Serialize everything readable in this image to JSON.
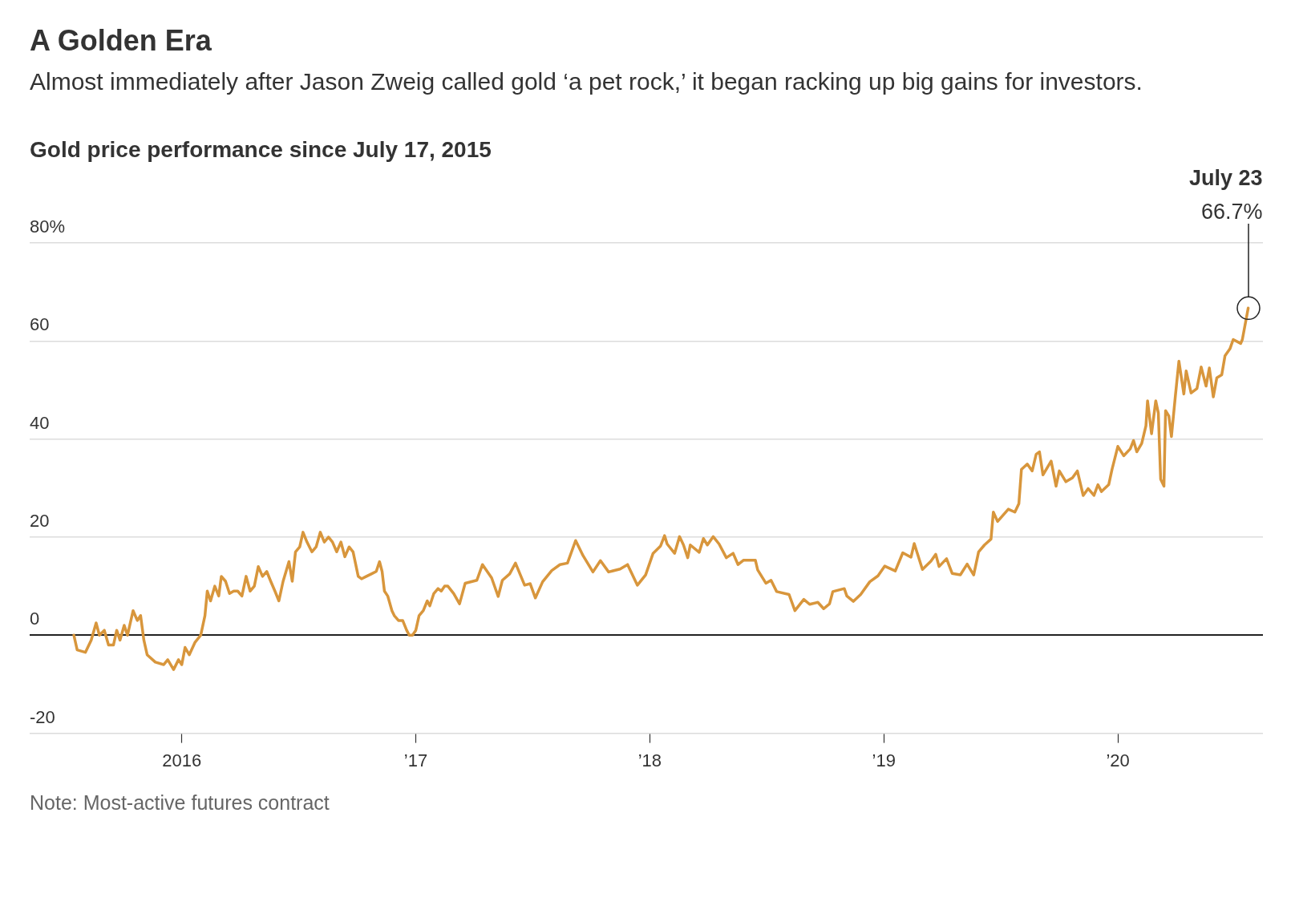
{
  "chart_data": {
    "type": "line",
    "title": "A Golden Era",
    "subtitle": "Almost immediately after Jason Zweig called gold ‘a pet rock,’ it began racking up big gains for investors.",
    "ylabel": "Gold price performance since July 17, 2015",
    "x": [
      2015.539,
      2015.553,
      2015.588,
      2015.613,
      2015.634,
      2015.648,
      2015.669,
      2015.687,
      2015.708,
      2015.722,
      2015.736,
      2015.754,
      2015.768,
      2015.792,
      2015.81,
      2015.824,
      2015.838,
      2015.852,
      2015.887,
      2015.923,
      2015.94,
      2015.965,
      2015.986,
      2016.0,
      2016.014,
      2016.032,
      2016.056,
      2016.081,
      2016.099,
      2016.109,
      2016.123,
      2016.141,
      2016.158,
      2016.169,
      2016.187,
      2016.204,
      2016.222,
      2016.239,
      2016.257,
      2016.275,
      2016.292,
      2016.31,
      2016.327,
      2016.345,
      2016.363,
      2016.38,
      2016.398,
      2016.415,
      2016.433,
      2016.458,
      2016.472,
      2016.486,
      2016.504,
      2016.518,
      2016.535,
      2016.556,
      2016.574,
      2016.592,
      2016.609,
      2016.627,
      2016.644,
      2016.662,
      2016.68,
      2016.697,
      2016.715,
      2016.732,
      2016.754,
      2016.768,
      2016.789,
      2016.81,
      2016.831,
      2016.845,
      2016.856,
      2016.866,
      2016.88,
      2016.898,
      2016.908,
      2016.926,
      2016.944,
      2016.961,
      2016.972,
      2016.986,
      2017.0,
      2017.014,
      2017.032,
      2017.049,
      2017.06,
      2017.077,
      2017.095,
      2017.109,
      2017.123,
      2017.137,
      2017.162,
      2017.187,
      2017.211,
      2017.261,
      2017.285,
      2017.324,
      2017.352,
      2017.37,
      2017.401,
      2017.426,
      2017.465,
      2017.489,
      2017.511,
      2017.542,
      2017.581,
      2017.616,
      2017.648,
      2017.683,
      2017.715,
      2017.757,
      2017.789,
      2017.824,
      2017.873,
      2017.905,
      2017.947,
      2017.982,
      2018.014,
      2018.046,
      2018.063,
      2018.074,
      2018.106,
      2018.127,
      2018.144,
      2018.162,
      2018.173,
      2018.211,
      2018.229,
      2018.246,
      2018.271,
      2018.296,
      2018.327,
      2018.356,
      2018.377,
      2018.401,
      2018.451,
      2018.461,
      2018.496,
      2018.518,
      2018.542,
      2018.595,
      2018.62,
      2018.658,
      2018.683,
      2018.718,
      2018.743,
      2018.768,
      2018.782,
      2018.831,
      2018.842,
      2018.87,
      2018.901,
      2018.94,
      2018.975,
      2019.004,
      2019.049,
      2019.081,
      2019.116,
      2019.13,
      2019.165,
      2019.201,
      2019.222,
      2019.236,
      2019.268,
      2019.292,
      2019.327,
      2019.356,
      2019.384,
      2019.405,
      2019.43,
      2019.458,
      2019.468,
      2019.486,
      2019.532,
      2019.56,
      2019.577,
      2019.588,
      2019.613,
      2019.634,
      2019.651,
      2019.665,
      2019.68,
      2019.715,
      2019.736,
      2019.75,
      2019.778,
      2019.806,
      2019.827,
      2019.852,
      2019.873,
      2019.898,
      2019.915,
      2019.93,
      2019.961,
      2019.975,
      2020.0,
      2020.025,
      2020.053,
      2020.067,
      2020.081,
      2020.102,
      2020.12,
      2020.127,
      2020.144,
      2020.162,
      2020.173,
      2020.183,
      2020.197,
      2020.204,
      2020.218,
      2020.229,
      2020.246,
      2020.261,
      2020.282,
      2020.292,
      2020.313,
      2020.338,
      2020.356,
      2020.377,
      2020.391,
      2020.408,
      2020.423,
      2020.444,
      2020.458,
      2020.479,
      2020.493,
      2020.525,
      2020.532,
      2020.557
    ],
    "series": [
      {
        "color": "#d8963c",
        "value_labels": [
          null,
          null,
          null,
          null,
          null,
          null,
          null,
          null,
          null,
          null,
          null,
          null,
          null,
          null,
          null,
          null,
          null,
          null,
          null,
          null,
          null,
          null,
          null,
          null,
          null,
          null,
          null,
          null,
          null,
          null,
          null,
          null,
          null,
          null,
          null,
          null,
          null,
          null,
          null,
          null,
          null,
          null,
          null,
          null,
          null,
          null,
          null,
          null,
          null,
          null,
          null,
          null,
          null,
          null,
          null,
          null,
          null,
          null,
          null,
          null,
          null,
          null,
          null,
          null,
          null,
          null,
          null,
          null,
          null,
          null,
          null,
          null,
          null,
          null,
          null,
          null,
          null,
          null,
          null,
          null,
          null,
          null,
          null,
          null,
          null,
          null,
          null,
          null,
          null,
          null,
          null,
          null,
          null,
          null,
          null,
          null,
          null,
          null,
          null,
          null,
          null,
          null,
          null,
          null,
          null,
          null,
          null,
          null,
          null,
          null,
          null,
          null,
          null,
          null,
          null,
          null,
          null,
          null,
          null,
          null,
          null,
          null,
          null,
          null,
          null,
          null,
          null,
          null,
          null,
          null,
          null,
          null,
          null,
          null,
          null,
          null,
          null,
          null,
          null,
          null,
          null,
          null,
          null,
          null,
          null,
          null,
          null,
          null,
          null,
          null,
          null,
          null,
          null,
          null,
          null,
          null,
          null,
          null,
          null,
          null,
          null,
          null,
          null,
          null,
          null,
          null,
          null,
          null,
          null,
          null,
          null,
          null,
          null,
          null,
          null,
          null,
          null,
          null,
          null,
          null,
          null,
          null,
          null,
          null,
          null,
          null,
          null,
          null,
          null,
          null,
          null,
          null,
          null,
          null,
          null,
          null,
          null,
          null,
          null,
          null,
          null,
          null,
          null,
          null,
          null,
          null,
          null,
          null,
          null,
          null,
          null,
          null,
          null,
          null,
          null,
          null,
          null,
          null,
          null,
          null,
          null,
          null,
          null,
          null,
          null,
          null,
          null,
          null,
          null,
          "66.7%"
        ],
        "values": [
          0,
          -3,
          -3.5,
          -1,
          2.5,
          0,
          1,
          -2,
          -2,
          1,
          -1,
          2,
          0,
          5,
          3,
          4,
          -1,
          -4,
          -5.5,
          -6,
          -5,
          -7,
          -5,
          -6,
          -2.5,
          -4,
          -1.5,
          0,
          4,
          9,
          7,
          10,
          8,
          12,
          11,
          8.5,
          9,
          9,
          8,
          12,
          9,
          10,
          14,
          12,
          13,
          11,
          9,
          7,
          11,
          15,
          11,
          17,
          18,
          21,
          19,
          17,
          18,
          21,
          19,
          20,
          19,
          17,
          19,
          16,
          18,
          17,
          12,
          11.5,
          12,
          12.5,
          13,
          15,
          13,
          9,
          8,
          5,
          4,
          3,
          3,
          1,
          0,
          0,
          1,
          4,
          5,
          7,
          6,
          8.5,
          9.5,
          9,
          10,
          10,
          8.5,
          6.4,
          10.6,
          11.2,
          14.4,
          11.7,
          7.9,
          11.2,
          12.5,
          14.7,
          10.2,
          10.5,
          7.6,
          10.9,
          13.2,
          14.4,
          14.7,
          19.3,
          16.2,
          12.9,
          15.2,
          12.9,
          13.5,
          14.4,
          10.2,
          12.3,
          16.7,
          18.2,
          20.3,
          18.6,
          16.7,
          20.1,
          18.4,
          15.8,
          18.4,
          16.9,
          19.7,
          18.4,
          20.1,
          18.6,
          15.8,
          16.7,
          14.4,
          15.3,
          15.3,
          13.3,
          10.6,
          11.2,
          8.9,
          8.3,
          5,
          7.3,
          6.3,
          6.7,
          5.4,
          6.4,
          8.9,
          9.5,
          8,
          6.9,
          8.3,
          10.9,
          12.1,
          14.1,
          13.1,
          16.8,
          15.9,
          18.7,
          13.4,
          15.1,
          16.5,
          14,
          15.6,
          12.6,
          12.3,
          14.5,
          12.3,
          17,
          18.4,
          19.6,
          25.1,
          23.2,
          25.7,
          25.1,
          26.8,
          33.8,
          34.9,
          33.5,
          36.9,
          37.4,
          32.7,
          35.5,
          30.4,
          33.5,
          31.3,
          32.1,
          33.5,
          28.5,
          29.9,
          28.5,
          30.7,
          29.3,
          30.7,
          33.8,
          38.5,
          36.6,
          38,
          39.7,
          37.4,
          39.1,
          42.7,
          47.8,
          41.1,
          47.8,
          45.3,
          31.8,
          30.4,
          45.8,
          44.7,
          40.5,
          48.9,
          55.9,
          49.2,
          53.9,
          49.4,
          50.3,
          54.7,
          50.8,
          54.5,
          48.6,
          52.5,
          53.1,
          57,
          58.4,
          60.3,
          59.5,
          60.3,
          66.7
        ]
      }
    ],
    "xlim": [
      2015.35,
      2020.62
    ],
    "xticks": [
      {
        "value": 2016,
        "label": "2016"
      },
      {
        "value": 2017,
        "label": "’17"
      },
      {
        "value": 2018,
        "label": "’18"
      },
      {
        "value": 2019,
        "label": "’19"
      },
      {
        "value": 2020,
        "label": "’20"
      }
    ],
    "ylim": [
      -20,
      80
    ],
    "yticks": [
      -20,
      0,
      20,
      40,
      60,
      {
        "value": 80,
        "label": "80%"
      }
    ],
    "grid": "y",
    "legend": false,
    "marker": "none",
    "line_style": "solid",
    "annotations": [
      "July 23",
      "Note: Most-active futures contract"
    ]
  }
}
